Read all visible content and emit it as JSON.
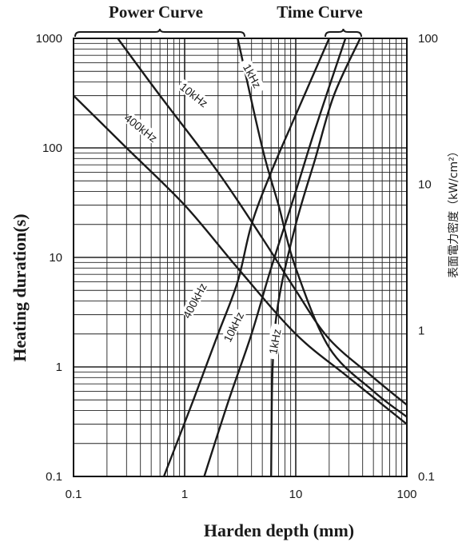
{
  "chart_data": {
    "type": "line",
    "scale": "log-log",
    "grid": true,
    "headers": [
      "Power Curve",
      "Time Curve"
    ],
    "xlabel": "Harden depth (mm)",
    "ylabel": "Heating duration(s)",
    "y2label": "表面電力密度（kW/cm²）",
    "xlim": [
      0.1,
      100
    ],
    "ylim": [
      0.1,
      1000
    ],
    "y2lim": [
      0.1,
      100
    ],
    "x_ticks": [
      "0.1",
      "1",
      "10",
      "100"
    ],
    "y_ticks": [
      "0.1",
      "1",
      "10",
      "100",
      "1000"
    ],
    "y2_ticks": [
      "0.1",
      "1",
      "10",
      "100"
    ],
    "power_curves": [
      {
        "name": "1kHz",
        "points": [
          [
            3,
            1000
          ],
          [
            5,
            100
          ],
          [
            7,
            30
          ],
          [
            10,
            8
          ],
          [
            20,
            1.5
          ],
          [
            50,
            0.6
          ],
          [
            100,
            0.35
          ]
        ]
      },
      {
        "name": "10kHz",
        "points": [
          [
            0.25,
            1000
          ],
          [
            0.6,
            300
          ],
          [
            2,
            60
          ],
          [
            5,
            15
          ],
          [
            10,
            5
          ],
          [
            20,
            1.8
          ],
          [
            50,
            0.8
          ],
          [
            100,
            0.45
          ]
        ]
      },
      {
        "name": "400kHz",
        "points": [
          [
            0.1,
            300
          ],
          [
            0.3,
            100
          ],
          [
            1,
            30
          ],
          [
            3,
            8
          ],
          [
            10,
            2
          ],
          [
            30,
            0.8
          ],
          [
            100,
            0.3
          ]
        ]
      }
    ],
    "time_curves": [
      {
        "name": "400kHz",
        "points": [
          [
            0.65,
            0.1
          ],
          [
            1.2,
            0.5
          ],
          [
            2,
            2
          ],
          [
            3,
            6
          ],
          [
            4,
            20
          ],
          [
            6,
            60
          ],
          [
            10,
            200
          ],
          [
            20,
            1000
          ]
        ]
      },
      {
        "name": "10kHz",
        "points": [
          [
            1.5,
            0.1
          ],
          [
            2.5,
            0.5
          ],
          [
            4,
            2
          ],
          [
            6,
            8
          ],
          [
            10,
            40
          ],
          [
            15,
            150
          ],
          [
            28,
            1000
          ]
        ]
      },
      {
        "name": "1kHz",
        "points": [
          [
            6,
            0.1
          ],
          [
            6.2,
            1
          ],
          [
            7,
            4
          ],
          [
            10,
            20
          ],
          [
            15,
            80
          ],
          [
            22,
            300
          ],
          [
            38,
            1000
          ]
        ]
      }
    ]
  }
}
